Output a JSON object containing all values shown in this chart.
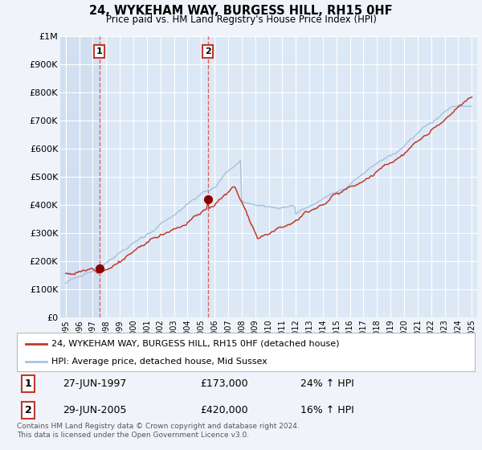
{
  "title": "24, WYKEHAM WAY, BURGESS HILL, RH15 0HF",
  "subtitle": "Price paid vs. HM Land Registry's House Price Index (HPI)",
  "hpi_label": "HPI: Average price, detached house, Mid Sussex",
  "property_label": "24, WYKEHAM WAY, BURGESS HILL, RH15 0HF (detached house)",
  "hpi_color": "#a8c4e0",
  "property_color": "#c0392b",
  "marker_color": "#8b0000",
  "dashed_line_color": "#e05050",
  "background_color": "#f0f4fa",
  "plot_bg_color": "#dce8f5",
  "grid_color": "#ffffff",
  "highlight_color": "#c8d8ee",
  "ylim": [
    0,
    1000000
  ],
  "yticks": [
    0,
    100000,
    200000,
    300000,
    400000,
    500000,
    600000,
    700000,
    800000,
    900000,
    1000000
  ],
  "ytick_labels": [
    "£0",
    "£100K",
    "£200K",
    "£300K",
    "£400K",
    "£500K",
    "£600K",
    "£700K",
    "£800K",
    "£900K",
    "£1M"
  ],
  "xmin": 1994.6,
  "xmax": 2025.4,
  "sale1_x": 1997.49,
  "sale1_y": 173000,
  "sale1_label": "1",
  "sale1_date": "27-JUN-1997",
  "sale1_price": "£173,000",
  "sale1_hpi": "24% ↑ HPI",
  "sale2_x": 2005.49,
  "sale2_y": 420000,
  "sale2_label": "2",
  "sale2_date": "29-JUN-2005",
  "sale2_price": "£420,000",
  "sale2_hpi": "16% ↑ HPI",
  "footer": "Contains HM Land Registry data © Crown copyright and database right 2024.\nThis data is licensed under the Open Government Licence v3.0."
}
